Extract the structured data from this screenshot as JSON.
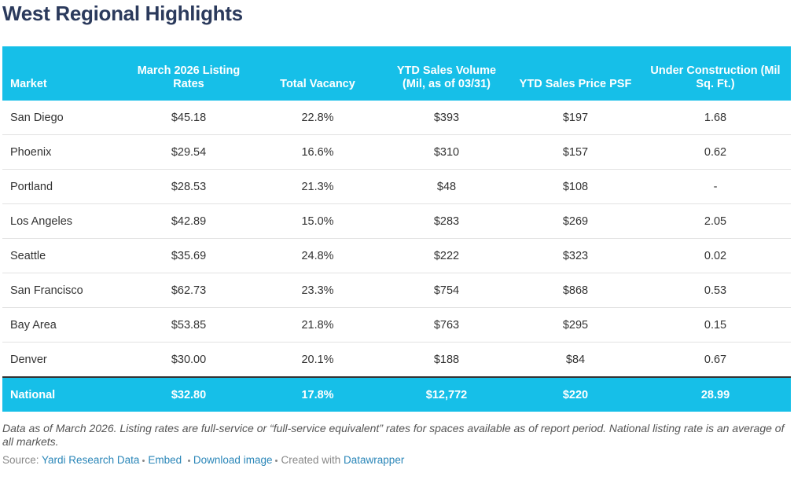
{
  "header": {
    "title": "West Regional Highlights"
  },
  "table": {
    "headers": [
      "Market",
      "March 2026 Listing Rates",
      "Total Vacancy",
      "YTD Sales Volume (Mil, as of 03/31)",
      "YTD Sales Price PSF",
      "Under Construction (Mil Sq. Ft.)"
    ],
    "rows": [
      [
        "San Diego",
        "$45.18",
        "22.8%",
        "$393",
        "$197",
        "1.68"
      ],
      [
        "Phoenix",
        "$29.54",
        "16.6%",
        "$310",
        "$157",
        "0.62"
      ],
      [
        "Portland",
        "$28.53",
        "21.3%",
        "$48",
        "$108",
        "-"
      ],
      [
        "Los Angeles",
        "$42.89",
        "15.0%",
        "$283",
        "$269",
        "2.05"
      ],
      [
        "Seattle",
        "$35.69",
        "24.8%",
        "$222",
        "$323",
        "0.02"
      ],
      [
        "San Francisco",
        "$62.73",
        "23.3%",
        "$754",
        "$868",
        "0.53"
      ],
      [
        "Bay Area",
        "$53.85",
        "21.8%",
        "$763",
        "$295",
        "0.15"
      ],
      [
        "Denver",
        "$30.00",
        "20.1%",
        "$188",
        "$84",
        "0.67"
      ]
    ],
    "total_row": [
      "National",
      "$32.80",
      "17.8%",
      "$12,772",
      "$220",
      "28.99"
    ]
  },
  "notes": "Data as of March 2026. Listing rates are full-service or “full-service equivalent” rates for spaces available as of report period. National listing rate is an average of all markets.",
  "footer": {
    "source_label": "Source:",
    "source": "Yardi Research Data",
    "links": [
      "Embed",
      "Download image"
    ],
    "created_label": "Created with",
    "created_with": "Datawrapper"
  }
}
